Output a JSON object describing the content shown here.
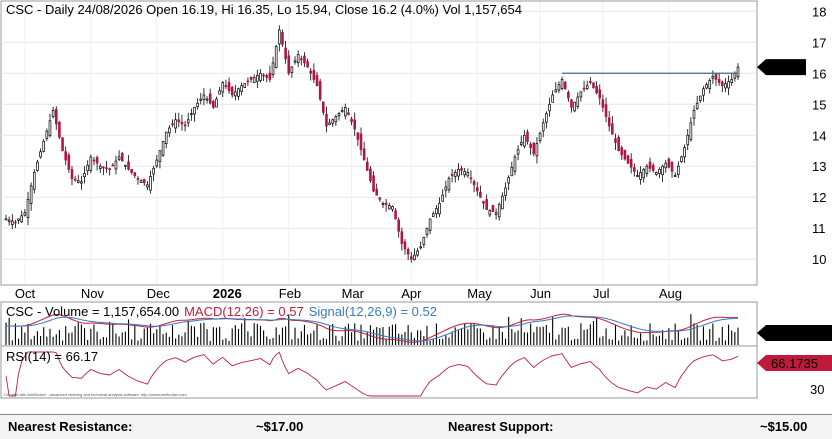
{
  "chart_data": {
    "type": "candlestick",
    "ticker": "CSC",
    "title": "CSC - Daily 24/08/2026 Open 16.19, Hi 16.35, Lo 15.94, Close 16.2 (4.0%) Vol 1,157,654",
    "last_price_label": "16.2",
    "resistance_level": 16.0,
    "ylim": [
      9.2,
      18.3
    ],
    "y_ticks": [
      "10",
      "11",
      "12",
      "13",
      "14",
      "15",
      "16",
      "17",
      "18"
    ],
    "x_labels": [
      {
        "label": "Oct",
        "pos": 6
      },
      {
        "label": "Nov",
        "pos": 27
      },
      {
        "label": "Dec",
        "pos": 48
      },
      {
        "label": "2026",
        "pos": 69
      },
      {
        "label": "Feb",
        "pos": 90
      },
      {
        "label": "Mar",
        "pos": 110
      },
      {
        "label": "Apr",
        "pos": 129
      },
      {
        "label": "May",
        "pos": 150
      },
      {
        "label": "Jun",
        "pos": 170
      },
      {
        "label": "Jul",
        "pos": 190
      },
      {
        "label": "Aug",
        "pos": 211
      }
    ],
    "anchors": [
      [
        0,
        11.3
      ],
      [
        3,
        11.2
      ],
      [
        6,
        11.5
      ],
      [
        9,
        12.8
      ],
      [
        12,
        13.8
      ],
      [
        15,
        14.8
      ],
      [
        18,
        13.5
      ],
      [
        21,
        12.6
      ],
      [
        24,
        12.5
      ],
      [
        27,
        13.3
      ],
      [
        30,
        13.0
      ],
      [
        33,
        12.9
      ],
      [
        36,
        13.3
      ],
      [
        39,
        12.9
      ],
      [
        42,
        12.6
      ],
      [
        45,
        12.4
      ],
      [
        48,
        13.2
      ],
      [
        51,
        14.1
      ],
      [
        54,
        14.5
      ],
      [
        57,
        14.3
      ],
      [
        60,
        14.9
      ],
      [
        63,
        15.3
      ],
      [
        66,
        14.9
      ],
      [
        69,
        15.7
      ],
      [
        72,
        15.3
      ],
      [
        75,
        15.6
      ],
      [
        78,
        15.8
      ],
      [
        81,
        16.0
      ],
      [
        84,
        15.8
      ],
      [
        87,
        17.4
      ],
      [
        90,
        16.0
      ],
      [
        93,
        16.6
      ],
      [
        96,
        16.2
      ],
      [
        99,
        15.6
      ],
      [
        102,
        14.3
      ],
      [
        105,
        14.6
      ],
      [
        108,
        14.9
      ],
      [
        111,
        14.2
      ],
      [
        114,
        13.2
      ],
      [
        117,
        12.2
      ],
      [
        120,
        11.8
      ],
      [
        123,
        11.7
      ],
      [
        126,
        10.5
      ],
      [
        129,
        10.0
      ],
      [
        132,
        10.4
      ],
      [
        135,
        11.3
      ],
      [
        138,
        11.8
      ],
      [
        141,
        12.6
      ],
      [
        144,
        12.9
      ],
      [
        147,
        12.8
      ],
      [
        150,
        12.2
      ],
      [
        153,
        11.6
      ],
      [
        156,
        11.5
      ],
      [
        159,
        12.3
      ],
      [
        162,
        13.3
      ],
      [
        165,
        14.0
      ],
      [
        168,
        13.4
      ],
      [
        171,
        14.4
      ],
      [
        174,
        15.3
      ],
      [
        177,
        15.8
      ],
      [
        180,
        14.9
      ],
      [
        183,
        15.4
      ],
      [
        186,
        15.7
      ],
      [
        189,
        15.2
      ],
      [
        192,
        14.3
      ],
      [
        195,
        13.5
      ],
      [
        198,
        13.1
      ],
      [
        201,
        12.7
      ],
      [
        204,
        13.0
      ],
      [
        207,
        12.8
      ],
      [
        210,
        13.1
      ],
      [
        213,
        12.7
      ],
      [
        216,
        13.6
      ],
      [
        219,
        14.8
      ],
      [
        222,
        15.5
      ],
      [
        225,
        15.9
      ],
      [
        228,
        15.6
      ],
      [
        231,
        15.8
      ],
      [
        233,
        16.2
      ]
    ],
    "volume": {
      "label": "CSC - Volume = 1,157,654.00",
      "last_label": "1,157,654"
    },
    "macd": {
      "label": "MACD(12,26) = 0.57",
      "signal_label": "Signal(12,26,9) = 0.52"
    },
    "rsi": {
      "label": "RSI(14) = 66.17",
      "last_label": "66.1735",
      "ticks": [
        "30"
      ]
    }
  },
  "footer": {
    "resistance_label": "Nearest Resistance:",
    "resistance_value": "~$17.00",
    "support_label": "Nearest Support:",
    "support_value": "~$15.00"
  },
  "credit": "Created with AmiBroker - advanced charting and technical analysis software. http://www.amibroker.com",
  "colors": {
    "up": "#ffffff",
    "down": "#b01545",
    "outline": "#000000",
    "resistance_line": "#3a6a9a",
    "price_label_bg": "#000000",
    "rsi_line": "#c02040",
    "macd_label": "#c0203a",
    "signal_label": "#3a7ac0",
    "volume_label_bg": "#000000",
    "rsi_label_bg": "#c01a3a"
  }
}
